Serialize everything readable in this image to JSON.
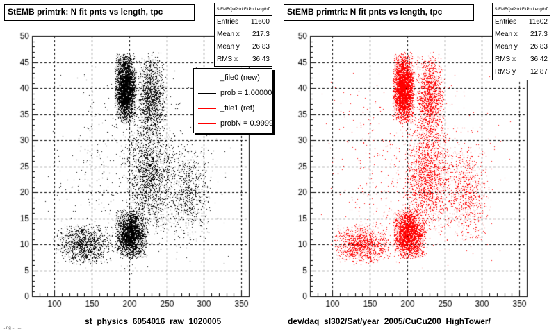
{
  "panels": [
    {
      "title": "StEMB primtrk: N fit pnts vs length, tpc",
      "stats": {
        "name": "StEMBQaPrtrkFitPntLengthT",
        "rows": [
          {
            "label": "Entries",
            "value": "11600"
          },
          {
            "label": "Mean x",
            "value": "217.3"
          },
          {
            "label": "Mean y",
            "value": "26.83"
          },
          {
            "label": "RMS x",
            "value": "36.43"
          }
        ]
      },
      "legend": [
        {
          "text": "_file0 (new)",
          "color": "#000000"
        },
        {
          "text": "prob = 1.000000",
          "color": "#000000"
        },
        {
          "text": "_file1 (ref)",
          "color": "#ff0000"
        },
        {
          "text": "probN = 0.999945",
          "color": "#ff0000"
        }
      ],
      "footer": "st_physics_6054016_raw_1020005",
      "tiny_note": "...ng ... ...."
    },
    {
      "title": "StEMB primtrk: N fit pnts vs length, tpc",
      "stats": {
        "name": "StEMBQaPrtrkFitPntLengthT",
        "rows": [
          {
            "label": "Entries",
            "value": "11602"
          },
          {
            "label": "Mean x",
            "value": "217.3"
          },
          {
            "label": "Mean y",
            "value": "26.83"
          },
          {
            "label": "RMS x",
            "value": "36.42"
          },
          {
            "label": "RMS y",
            "value": "12.87"
          }
        ]
      },
      "footer": "dev/daq_sl302/Sat/year_2005/CuCu200_HighTower/"
    }
  ],
  "chart_data": [
    {
      "type": "scatter",
      "title": "StEMB primtrk: N fit pnts vs length, tpc",
      "xlabel": "st_physics_6054016_raw_1020005",
      "ylabel": "",
      "xlim": [
        70,
        360
      ],
      "ylim": [
        0,
        50
      ],
      "xticks": [
        100,
        150,
        200,
        250,
        300,
        350
      ],
      "yticks": [
        0,
        5,
        10,
        15,
        20,
        25,
        30,
        35,
        40,
        45,
        50
      ],
      "grid": true,
      "color": "#000000",
      "entries": 11600,
      "density_regions": [
        {
          "x": [
            180,
            210
          ],
          "y": [
            33,
            47
          ],
          "weight": 0.3
        },
        {
          "x": [
            210,
            250
          ],
          "y": [
            30,
            47
          ],
          "weight": 0.12
        },
        {
          "x": [
            180,
            225
          ],
          "y": [
            7,
            17
          ],
          "weight": 0.22
        },
        {
          "x": [
            100,
            180
          ],
          "y": [
            6,
            14
          ],
          "weight": 0.1
        },
        {
          "x": [
            195,
            260
          ],
          "y": [
            12,
            35
          ],
          "weight": 0.14
        },
        {
          "x": [
            250,
            310
          ],
          "y": [
            10,
            30
          ],
          "weight": 0.06
        },
        {
          "x": [
            80,
            340
          ],
          "y": [
            4,
            45
          ],
          "weight": 0.06
        }
      ]
    },
    {
      "type": "scatter",
      "title": "StEMB primtrk: N fit pnts vs length, tpc",
      "xlabel": "dev/daq_sl302/Sat/year_2005/CuCu200_HighTower/",
      "ylabel": "",
      "xlim": [
        70,
        360
      ],
      "ylim": [
        0,
        50
      ],
      "xticks": [
        100,
        150,
        200,
        250,
        300,
        350
      ],
      "yticks": [
        0,
        5,
        10,
        15,
        20,
        25,
        30,
        35,
        40,
        45,
        50
      ],
      "grid": true,
      "color": "#ff0000",
      "entries": 11602,
      "density_regions": [
        {
          "x": [
            180,
            210
          ],
          "y": [
            33,
            47
          ],
          "weight": 0.3
        },
        {
          "x": [
            210,
            250
          ],
          "y": [
            30,
            47
          ],
          "weight": 0.12
        },
        {
          "x": [
            180,
            225
          ],
          "y": [
            7,
            17
          ],
          "weight": 0.22
        },
        {
          "x": [
            100,
            180
          ],
          "y": [
            6,
            14
          ],
          "weight": 0.1
        },
        {
          "x": [
            195,
            260
          ],
          "y": [
            12,
            35
          ],
          "weight": 0.14
        },
        {
          "x": [
            250,
            310
          ],
          "y": [
            10,
            30
          ],
          "weight": 0.06
        },
        {
          "x": [
            80,
            340
          ],
          "y": [
            4,
            45
          ],
          "weight": 0.06
        }
      ]
    }
  ]
}
